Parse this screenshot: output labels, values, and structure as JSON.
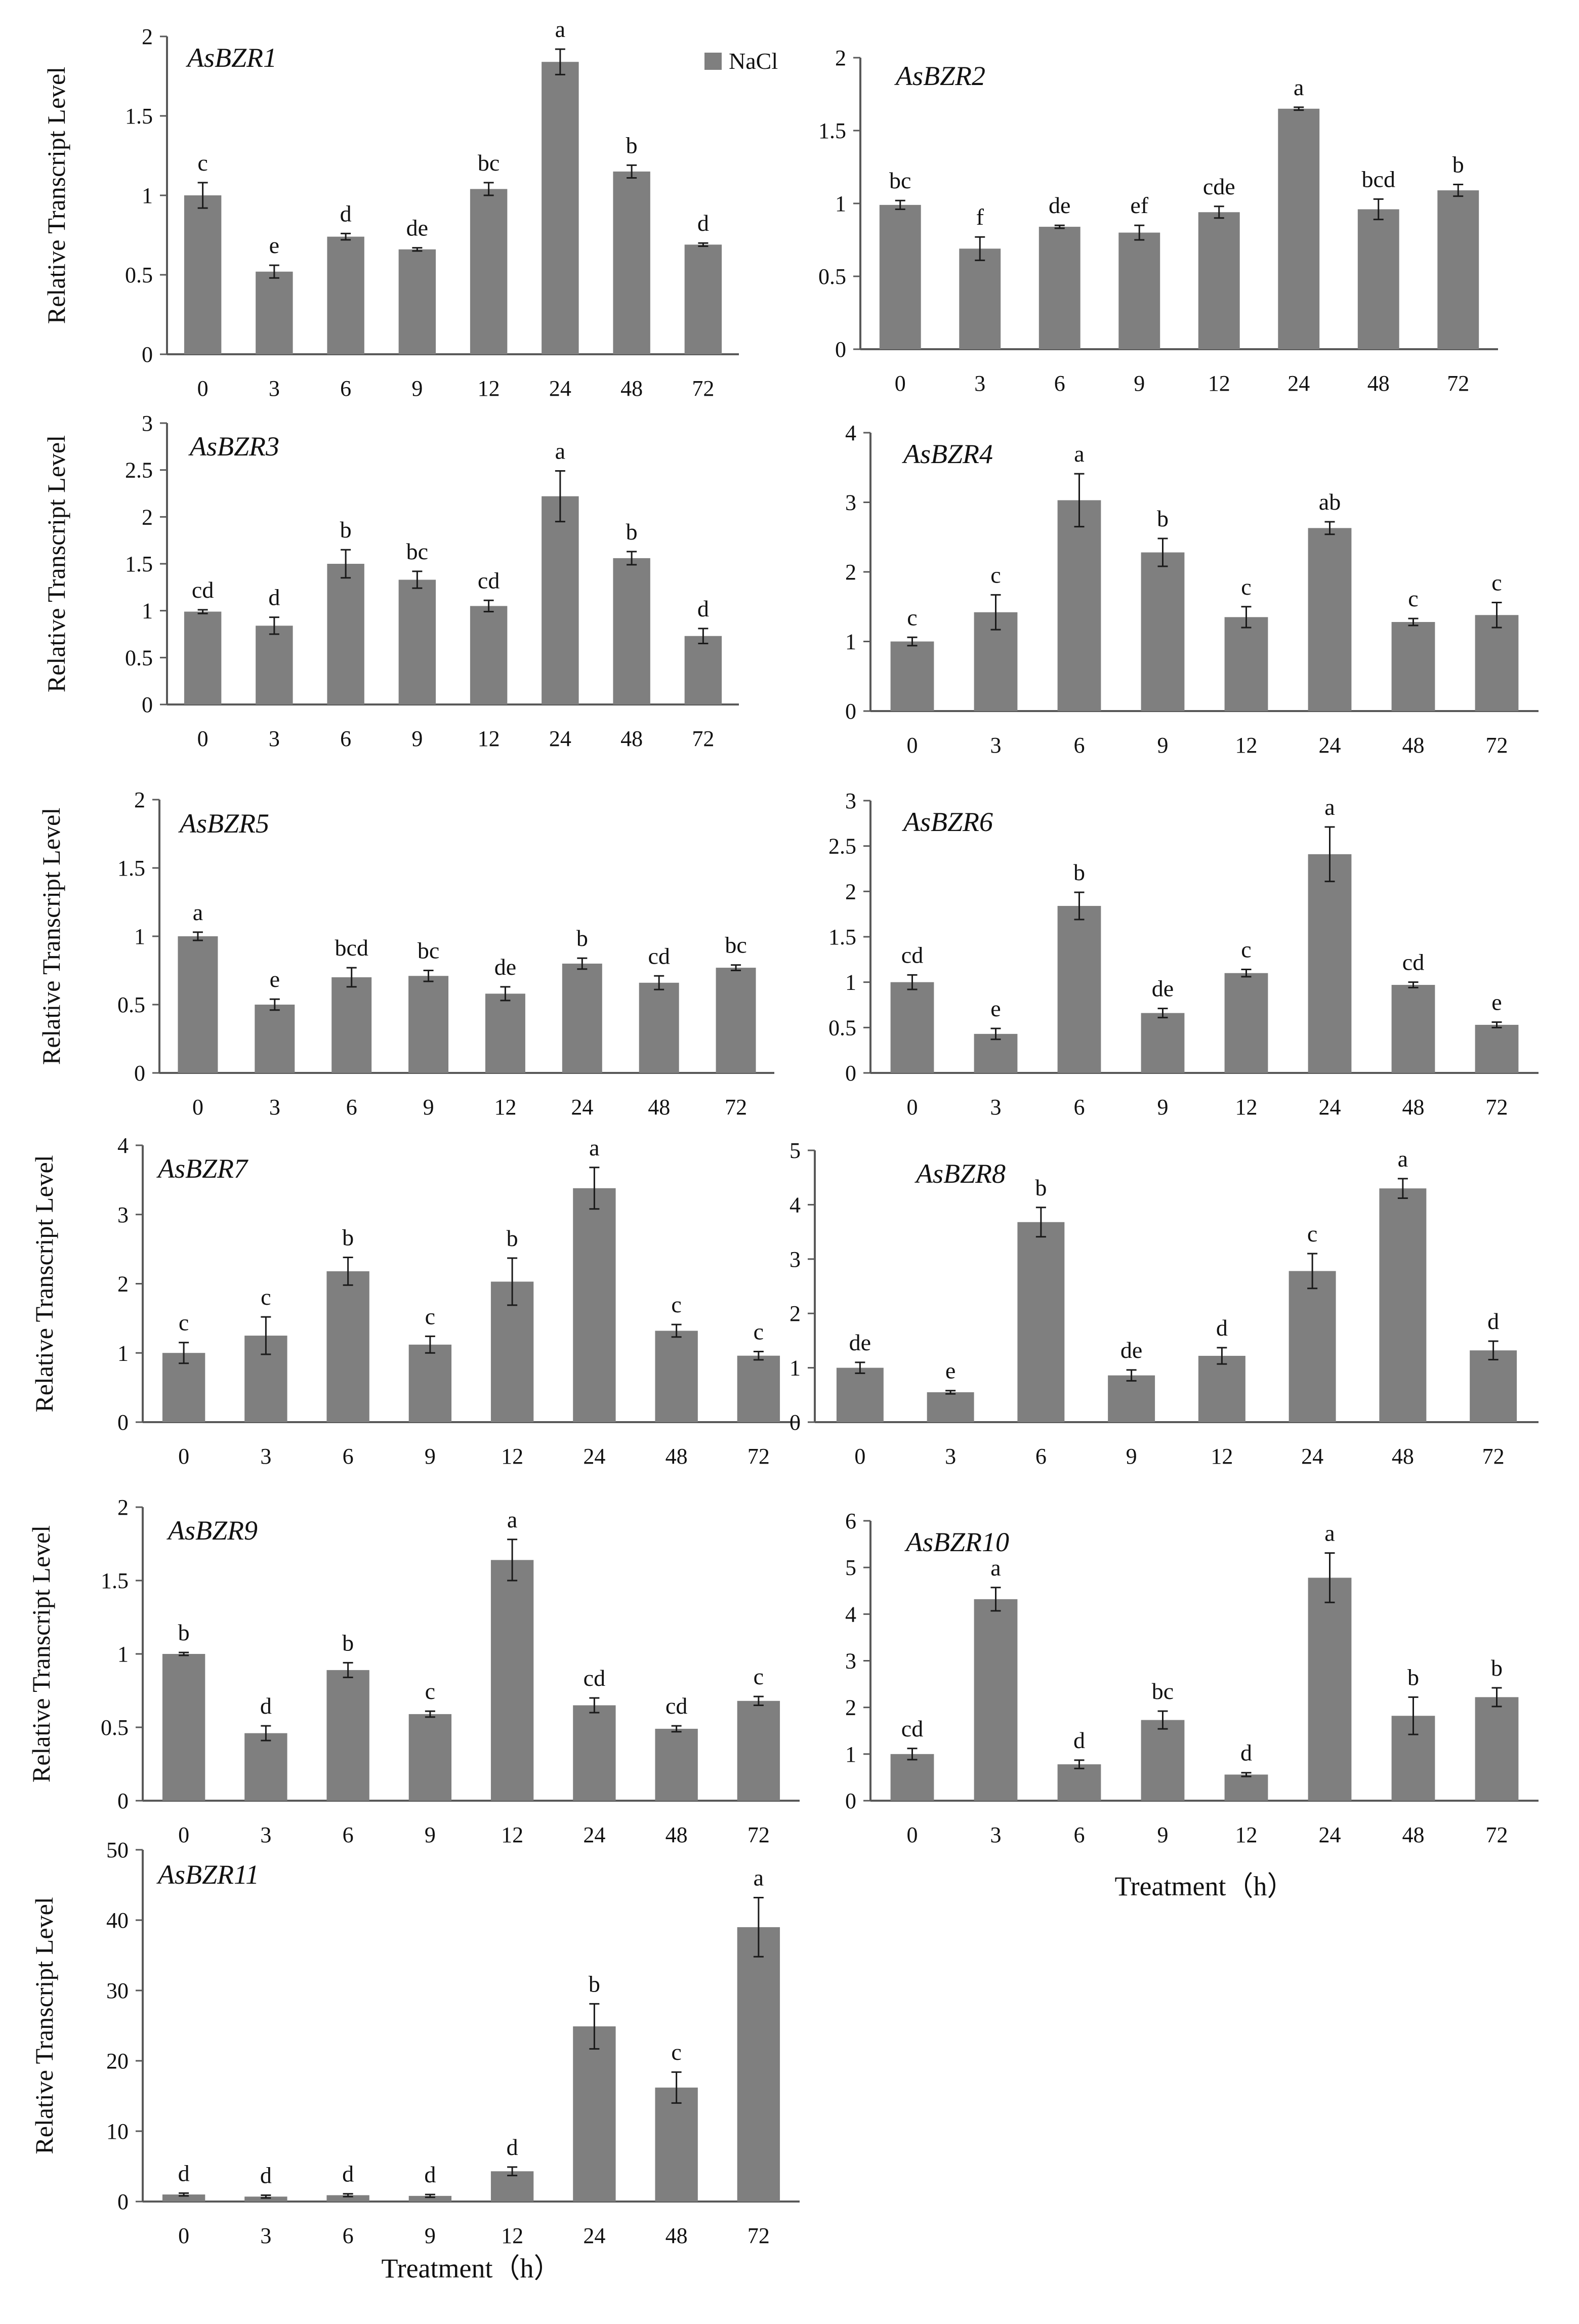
{
  "legend": {
    "label": "NaCl",
    "color": "#7f7f7f"
  },
  "colors": {
    "bar": "#7f7f7f",
    "axis": "#595959",
    "error": "#1a1a1a",
    "text": "#111111"
  },
  "chart_data": [
    {
      "type": "bar",
      "title": "AsBZR1",
      "ylabel": "Relative Transcript Level",
      "xlabel": "",
      "categories": [
        "0",
        "3",
        "6",
        "9",
        "12",
        "24",
        "48",
        "72"
      ],
      "yticks": [
        "0",
        "0.5",
        "1",
        "1.5",
        "2"
      ],
      "ylim": [
        0,
        2
      ],
      "series": [
        {
          "name": "NaCl",
          "values": [
            1.0,
            0.52,
            0.74,
            0.66,
            1.04,
            1.84,
            1.15,
            0.69
          ],
          "errors": [
            0.08,
            0.04,
            0.02,
            0.01,
            0.04,
            0.08,
            0.04,
            0.01
          ]
        }
      ],
      "labels": [
        "c",
        "e",
        "d",
        "de",
        "bc",
        "a",
        "b",
        "d"
      ]
    },
    {
      "type": "bar",
      "title": "AsBZR2",
      "ylabel": "",
      "xlabel": "",
      "categories": [
        "0",
        "3",
        "6",
        "9",
        "12",
        "24",
        "48",
        "72"
      ],
      "yticks": [
        "0",
        "0.5",
        "1",
        "1.5",
        "2"
      ],
      "ylim": [
        0,
        2
      ],
      "series": [
        {
          "name": "NaCl",
          "values": [
            0.99,
            0.69,
            0.84,
            0.8,
            0.94,
            1.65,
            0.96,
            1.09
          ],
          "errors": [
            0.03,
            0.08,
            0.01,
            0.05,
            0.04,
            0.01,
            0.07,
            0.04
          ]
        }
      ],
      "labels": [
        "bc",
        "f",
        "de",
        "ef",
        "cde",
        "a",
        "bcd",
        "b"
      ]
    },
    {
      "type": "bar",
      "title": "AsBZR3",
      "ylabel": "Relative Transcript Level",
      "xlabel": "",
      "categories": [
        "0",
        "3",
        "6",
        "9",
        "12",
        "24",
        "48",
        "72"
      ],
      "yticks": [
        "0",
        "0.5",
        "1",
        "1.5",
        "2",
        "2.5",
        "3"
      ],
      "ylim": [
        0,
        3
      ],
      "series": [
        {
          "name": "NaCl",
          "values": [
            0.99,
            0.84,
            1.5,
            1.33,
            1.05,
            2.22,
            1.56,
            0.73
          ],
          "errors": [
            0.02,
            0.09,
            0.15,
            0.09,
            0.06,
            0.27,
            0.07,
            0.08
          ]
        }
      ],
      "labels": [
        "cd",
        "d",
        "b",
        "bc",
        "cd",
        "a",
        "b",
        "d"
      ]
    },
    {
      "type": "bar",
      "title": "AsBZR4",
      "ylabel": "",
      "xlabel": "",
      "categories": [
        "0",
        "3",
        "6",
        "9",
        "12",
        "24",
        "48",
        "72"
      ],
      "yticks": [
        "0",
        "1",
        "2",
        "3",
        "4"
      ],
      "ylim": [
        0,
        4
      ],
      "series": [
        {
          "name": "NaCl",
          "values": [
            1.0,
            1.42,
            3.03,
            2.28,
            1.35,
            2.63,
            1.28,
            1.38
          ],
          "errors": [
            0.06,
            0.25,
            0.38,
            0.2,
            0.15,
            0.09,
            0.05,
            0.18
          ]
        }
      ],
      "labels": [
        "c",
        "c",
        "a",
        "b",
        "c",
        "ab",
        "c",
        "c"
      ]
    },
    {
      "type": "bar",
      "title": "AsBZR5",
      "ylabel": "Relative Transcript Level",
      "xlabel": "",
      "categories": [
        "0",
        "3",
        "6",
        "9",
        "12",
        "24",
        "48",
        "72"
      ],
      "yticks": [
        "0",
        "0.5",
        "1",
        "1.5",
        "2"
      ],
      "ylim": [
        0,
        2
      ],
      "series": [
        {
          "name": "NaCl",
          "values": [
            1.0,
            0.5,
            0.7,
            0.71,
            0.58,
            0.8,
            0.66,
            0.77
          ],
          "errors": [
            0.03,
            0.04,
            0.07,
            0.04,
            0.05,
            0.04,
            0.05,
            0.02
          ]
        }
      ],
      "labels": [
        "a",
        "e",
        "bcd",
        "bc",
        "de",
        "b",
        "cd",
        "bc"
      ]
    },
    {
      "type": "bar",
      "title": "AsBZR6",
      "ylabel": "",
      "xlabel": "",
      "categories": [
        "0",
        "3",
        "6",
        "9",
        "12",
        "24",
        "48",
        "72"
      ],
      "yticks": [
        "0",
        "0.5",
        "1",
        "1.5",
        "2",
        "2.5",
        "3"
      ],
      "ylim": [
        0,
        3
      ],
      "series": [
        {
          "name": "NaCl",
          "values": [
            1.0,
            0.43,
            1.84,
            0.66,
            1.1,
            2.41,
            0.97,
            0.53
          ],
          "errors": [
            0.08,
            0.06,
            0.15,
            0.05,
            0.04,
            0.3,
            0.03,
            0.03
          ]
        }
      ],
      "labels": [
        "cd",
        "e",
        "b",
        "de",
        "c",
        "a",
        "cd",
        "e"
      ]
    },
    {
      "type": "bar",
      "title": "AsBZR7",
      "ylabel": "Relative Transcript Level",
      "xlabel": "",
      "categories": [
        "0",
        "3",
        "6",
        "9",
        "12",
        "24",
        "48",
        "72"
      ],
      "yticks": [
        "0",
        "1",
        "2",
        "3",
        "4"
      ],
      "ylim": [
        0,
        4
      ],
      "series": [
        {
          "name": "NaCl",
          "values": [
            1.0,
            1.25,
            2.18,
            1.12,
            2.03,
            3.38,
            1.32,
            0.96
          ],
          "errors": [
            0.15,
            0.27,
            0.2,
            0.12,
            0.34,
            0.3,
            0.09,
            0.06
          ]
        }
      ],
      "labels": [
        "c",
        "c",
        "b",
        "c",
        "b",
        "a",
        "c",
        "c"
      ]
    },
    {
      "type": "bar",
      "title": "AsBZR8",
      "ylabel": "",
      "xlabel": "",
      "categories": [
        "0",
        "3",
        "6",
        "9",
        "12",
        "24",
        "48",
        "72"
      ],
      "yticks": [
        "0",
        "1",
        "2",
        "3",
        "4",
        "5"
      ],
      "ylim": [
        0,
        5
      ],
      "series": [
        {
          "name": "NaCl",
          "values": [
            1.0,
            0.55,
            3.68,
            0.86,
            1.22,
            2.78,
            4.3,
            1.32
          ],
          "errors": [
            0.1,
            0.03,
            0.27,
            0.1,
            0.15,
            0.32,
            0.18,
            0.17
          ]
        }
      ],
      "labels": [
        "de",
        "e",
        "b",
        "de",
        "d",
        "c",
        "a",
        "d"
      ]
    },
    {
      "type": "bar",
      "title": "AsBZR9",
      "ylabel": "Relative Transcript Level",
      "xlabel": "",
      "categories": [
        "0",
        "3",
        "6",
        "9",
        "12",
        "24",
        "48",
        "72"
      ],
      "yticks": [
        "0",
        "0.5",
        "1",
        "1.5",
        "2"
      ],
      "ylim": [
        0,
        2
      ],
      "series": [
        {
          "name": "NaCl",
          "values": [
            1.0,
            0.46,
            0.89,
            0.59,
            1.64,
            0.65,
            0.49,
            0.68
          ],
          "errors": [
            0.01,
            0.05,
            0.05,
            0.02,
            0.14,
            0.05,
            0.02,
            0.03
          ]
        }
      ],
      "labels": [
        "b",
        "d",
        "b",
        "c",
        "a",
        "cd",
        "cd",
        "c"
      ]
    },
    {
      "type": "bar",
      "title": "AsBZR10",
      "ylabel": "",
      "xlabel": "Treatment（h）",
      "categories": [
        "0",
        "3",
        "6",
        "9",
        "12",
        "24",
        "48",
        "72"
      ],
      "yticks": [
        "0",
        "1",
        "2",
        "3",
        "4",
        "5",
        "6"
      ],
      "ylim": [
        0,
        6
      ],
      "series": [
        {
          "name": "NaCl",
          "values": [
            1.0,
            4.32,
            0.78,
            1.73,
            0.56,
            4.78,
            1.82,
            2.22
          ],
          "errors": [
            0.12,
            0.25,
            0.09,
            0.19,
            0.04,
            0.53,
            0.4,
            0.2
          ]
        }
      ],
      "labels": [
        "cd",
        "a",
        "d",
        "bc",
        "d",
        "a",
        "b",
        "b"
      ]
    },
    {
      "type": "bar",
      "title": "AsBZR11",
      "ylabel": "Relative Transcript Level",
      "xlabel": "Treatment（h）",
      "categories": [
        "0",
        "3",
        "6",
        "9",
        "12",
        "24",
        "48",
        "72"
      ],
      "yticks": [
        "0",
        "10",
        "20",
        "30",
        "40",
        "50"
      ],
      "ylim": [
        0,
        50
      ],
      "series": [
        {
          "name": "NaCl",
          "values": [
            1.0,
            0.7,
            0.9,
            0.8,
            4.3,
            24.9,
            16.2,
            39.0
          ],
          "errors": [
            0.2,
            0.2,
            0.2,
            0.2,
            0.6,
            3.2,
            2.2,
            4.2
          ]
        }
      ],
      "labels": [
        "d",
        "d",
        "d",
        "d",
        "d",
        "b",
        "c",
        "a"
      ]
    }
  ]
}
